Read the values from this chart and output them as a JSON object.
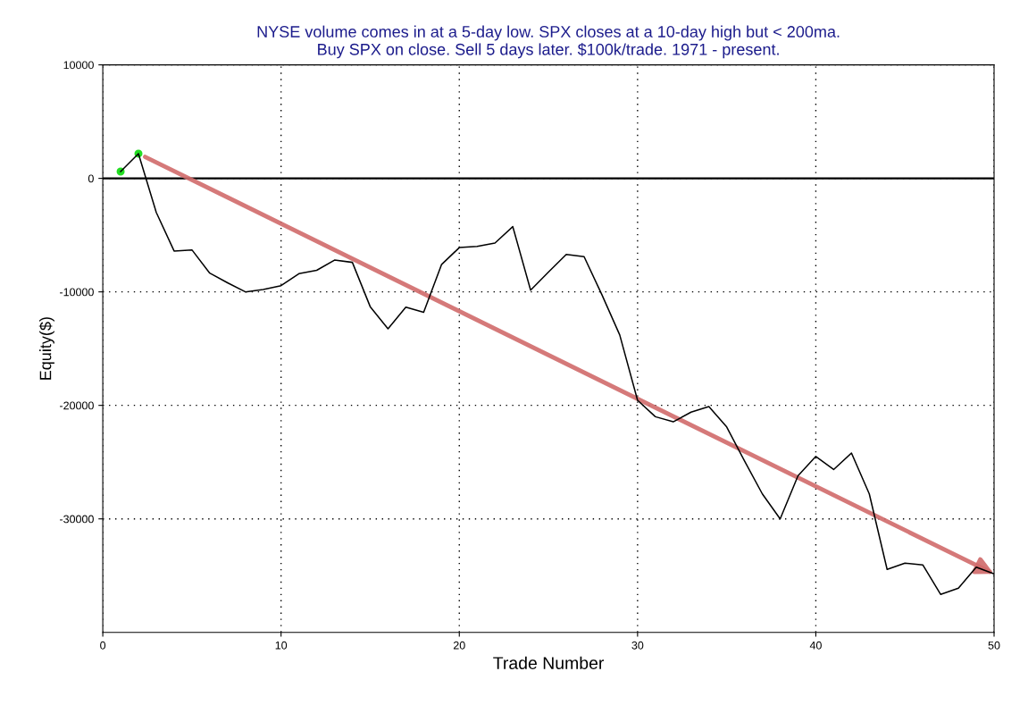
{
  "chart_data": {
    "type": "line",
    "title": "NYSE volume comes in at a 5-day low. SPX closes at a 10-day high but < 200ma.\nBuy SPX on close. Sell 5 days later. $100k/trade. 1971 - present.",
    "xlabel": "Trade Number",
    "ylabel": "Equity($)",
    "x": [
      1,
      2,
      3,
      4,
      5,
      6,
      7,
      8,
      9,
      10,
      11,
      12,
      13,
      14,
      15,
      16,
      17,
      18,
      19,
      20,
      21,
      22,
      23,
      24,
      25,
      26,
      27,
      28,
      29,
      30,
      31,
      32,
      33,
      34,
      35,
      36,
      37,
      38,
      39,
      40,
      41,
      42,
      43,
      44,
      45,
      46,
      47,
      48,
      49,
      50
    ],
    "series": [
      {
        "color": "#000000",
        "values": [
          600,
          2180,
          -3000,
          -6400,
          -6300,
          -8350,
          -9200,
          -10000,
          -9800,
          -9450,
          -8400,
          -8100,
          -7200,
          -7400,
          -11300,
          -13250,
          -11350,
          -11800,
          -7600,
          -6100,
          -6000,
          -5700,
          -4250,
          -9850,
          -8250,
          -6700,
          -6900,
          -10250,
          -13800,
          -19550,
          -21000,
          -21450,
          -20600,
          -20100,
          -21900,
          -24900,
          -27800,
          -30000,
          -26200,
          -24500,
          -25650,
          -24200,
          -27800,
          -34450,
          -33900,
          -34050,
          -36650,
          -36100,
          -34250,
          -34850
        ]
      },
      {
        "type": "scatter",
        "color": "#22dd22",
        "marker": "circle",
        "x": [
          1,
          2
        ],
        "values": [
          600,
          2180
        ]
      }
    ],
    "xlim": [
      0,
      50
    ],
    "xticks": [
      0,
      10,
      20,
      30,
      40,
      50
    ],
    "ylim": [
      -40000,
      10000
    ],
    "yticks": [
      -30000,
      -20000,
      -10000,
      0,
      10000
    ],
    "ref_lines": [
      {
        "axis": "y",
        "value": 0,
        "color": "#000000",
        "line_style": "solid"
      }
    ],
    "grid": true,
    "line_style": "solid",
    "marker": "none"
  }
}
